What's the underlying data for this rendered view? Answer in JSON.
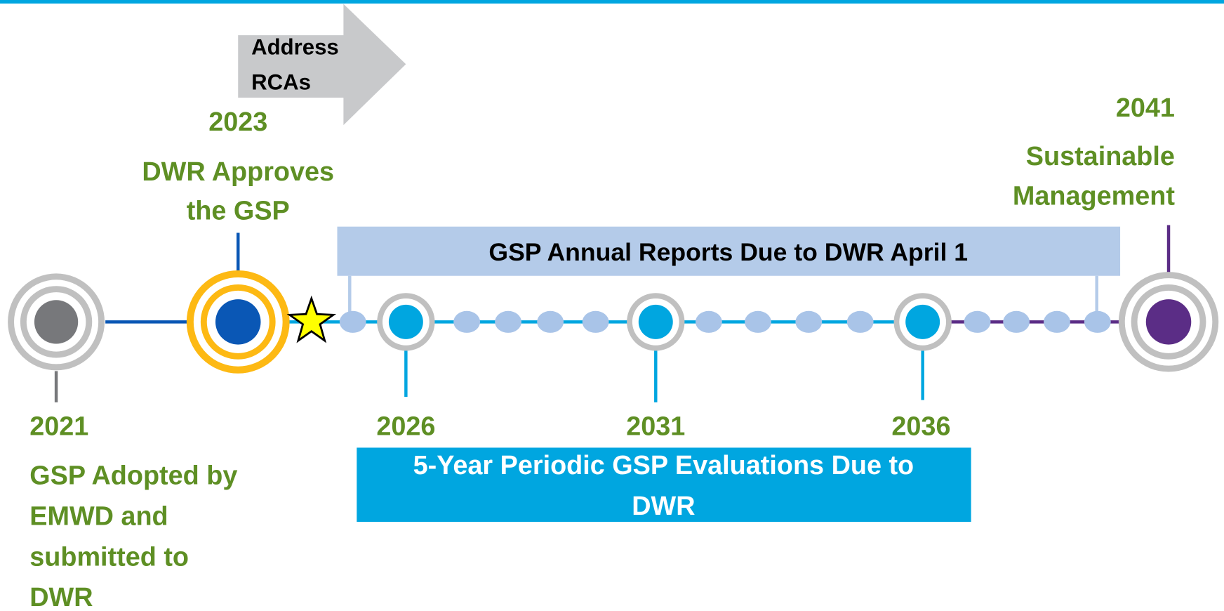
{
  "banner": {
    "lines": [
      "Address",
      "RCAs"
    ]
  },
  "annual_reports": "GSP Annual Reports Due to DWR April 1",
  "evaluations": {
    "lines": [
      "5-Year Periodic GSP Evaluations Due to",
      "DWR"
    ]
  },
  "milestones": [
    {
      "year": "2021",
      "lines": [
        "GSP Adopted by",
        "EMWD and",
        "submitted to",
        "DWR"
      ]
    },
    {
      "year": "2023",
      "lines": [
        "DWR Approves",
        "the GSP"
      ]
    },
    {
      "year": "2026"
    },
    {
      "year": "2031"
    },
    {
      "year": "2036"
    },
    {
      "year": "2041",
      "lines": [
        "Sustainable",
        "Management"
      ]
    }
  ]
}
